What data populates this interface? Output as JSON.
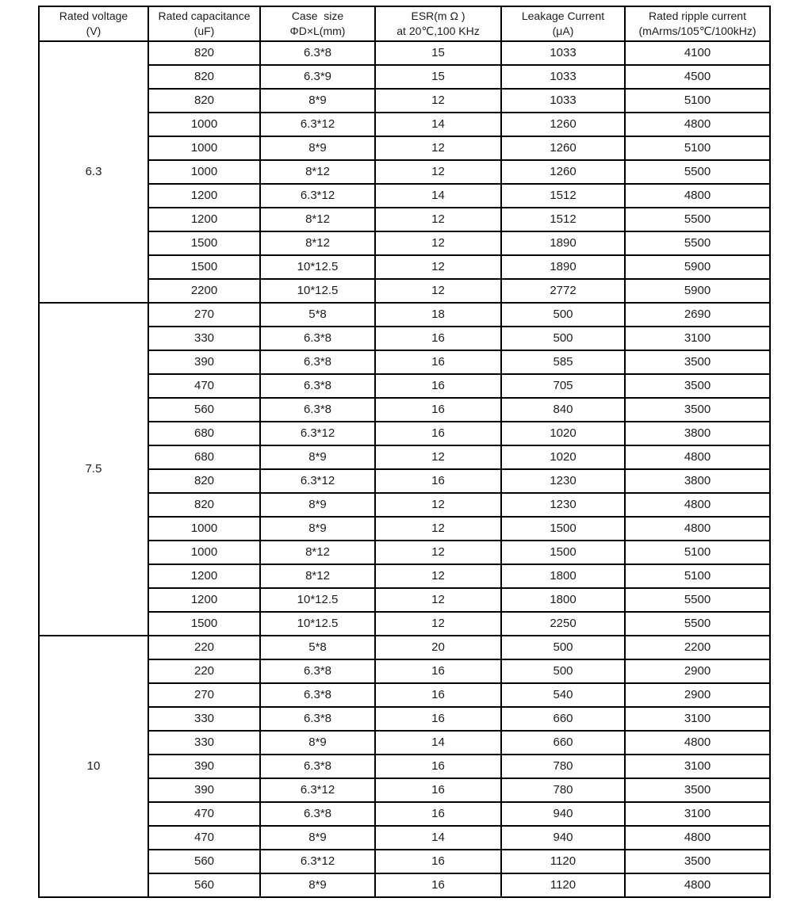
{
  "table": {
    "column_keys": [
      "rated-voltage",
      "capacitance",
      "case-size",
      "esr",
      "leakage-current",
      "ripple-current"
    ],
    "headers": [
      {
        "line1": "Rated voltage",
        "line2": "(V)"
      },
      {
        "line1": "Rated capacitance",
        "line2": "(uF)"
      },
      {
        "line1": "Case  size",
        "line2": "ΦD×L(mm)"
      },
      {
        "line1": "ESR(m Ω )",
        "line2": "at 20℃,100 KHz"
      },
      {
        "line1": "Leakage Current",
        "line2": "(μA)"
      },
      {
        "line1": "Rated ripple current",
        "line2": "(mArms/105℃/100kHz)"
      }
    ],
    "groups": [
      {
        "voltage": "6.3",
        "rows": [
          [
            "820",
            "6.3*8",
            "15",
            "1033",
            "4100"
          ],
          [
            "820",
            "6.3*9",
            "15",
            "1033",
            "4500"
          ],
          [
            "820",
            "8*9",
            "12",
            "1033",
            "5100"
          ],
          [
            "1000",
            "6.3*12",
            "14",
            "1260",
            "4800"
          ],
          [
            "1000",
            "8*9",
            "12",
            "1260",
            "5100"
          ],
          [
            "1000",
            "8*12",
            "12",
            "1260",
            "5500"
          ],
          [
            "1200",
            "6.3*12",
            "14",
            "1512",
            "4800"
          ],
          [
            "1200",
            "8*12",
            "12",
            "1512",
            "5500"
          ],
          [
            "1500",
            "8*12",
            "12",
            "1890",
            "5500"
          ],
          [
            "1500",
            "10*12.5",
            "12",
            "1890",
            "5900"
          ],
          [
            "2200",
            "10*12.5",
            "12",
            "2772",
            "5900"
          ]
        ]
      },
      {
        "voltage": "7.5",
        "rows": [
          [
            "270",
            "5*8",
            "18",
            "500",
            "2690"
          ],
          [
            "330",
            "6.3*8",
            "16",
            "500",
            "3100"
          ],
          [
            "390",
            "6.3*8",
            "16",
            "585",
            "3500"
          ],
          [
            "470",
            "6.3*8",
            "16",
            "705",
            "3500"
          ],
          [
            "560",
            "6.3*8",
            "16",
            "840",
            "3500"
          ],
          [
            "680",
            "6.3*12",
            "16",
            "1020",
            "3800"
          ],
          [
            "680",
            "8*9",
            "12",
            "1020",
            "4800"
          ],
          [
            "820",
            "6.3*12",
            "16",
            "1230",
            "3800"
          ],
          [
            "820",
            "8*9",
            "12",
            "1230",
            "4800"
          ],
          [
            "1000",
            "8*9",
            "12",
            "1500",
            "4800"
          ],
          [
            "1000",
            "8*12",
            "12",
            "1500",
            "5100"
          ],
          [
            "1200",
            "8*12",
            "12",
            "1800",
            "5100"
          ],
          [
            "1200",
            "10*12.5",
            "12",
            "1800",
            "5500"
          ],
          [
            "1500",
            "10*12.5",
            "12",
            "2250",
            "5500"
          ]
        ]
      },
      {
        "voltage": "10",
        "rows": [
          [
            "220",
            "5*8",
            "20",
            "500",
            "2200"
          ],
          [
            "220",
            "6.3*8",
            "16",
            "500",
            "2900"
          ],
          [
            "270",
            "6.3*8",
            "16",
            "540",
            "2900"
          ],
          [
            "330",
            "6.3*8",
            "16",
            "660",
            "3100"
          ],
          [
            "330",
            "8*9",
            "14",
            "660",
            "4800"
          ],
          [
            "390",
            "6.3*8",
            "16",
            "780",
            "3100"
          ],
          [
            "390",
            "6.3*12",
            "16",
            "780",
            "3500"
          ],
          [
            "470",
            "6.3*8",
            "16",
            "940",
            "3100"
          ],
          [
            "470",
            "8*9",
            "14",
            "940",
            "4800"
          ],
          [
            "560",
            "6.3*12",
            "16",
            "1120",
            "3500"
          ],
          [
            "560",
            "8*9",
            "16",
            "1120",
            "4800"
          ]
        ]
      }
    ]
  }
}
